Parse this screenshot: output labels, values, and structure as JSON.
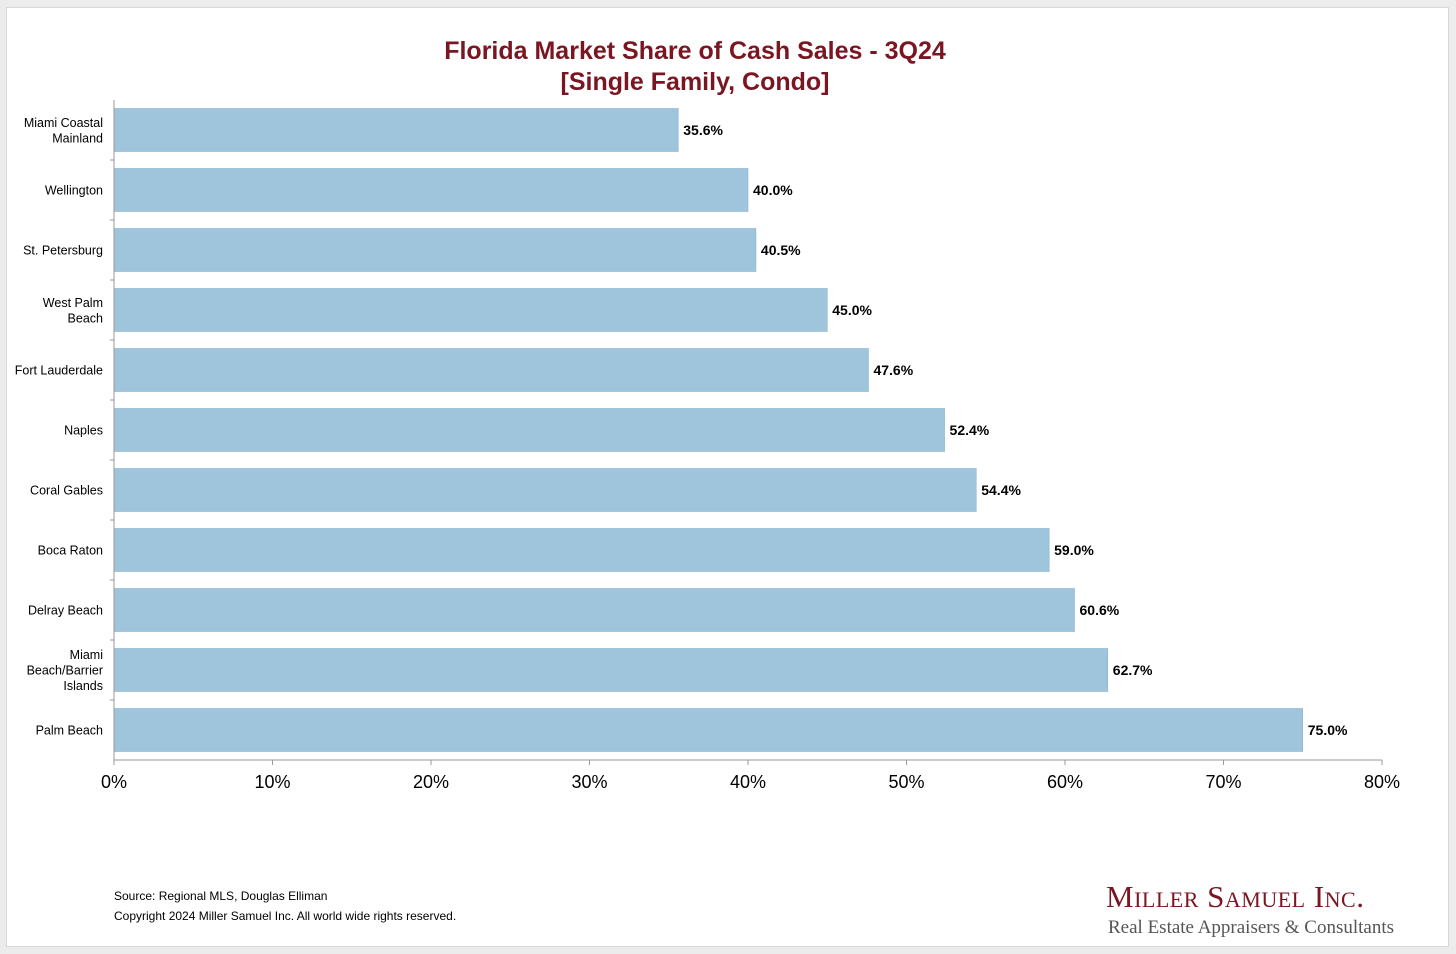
{
  "chart_data": {
    "type": "bar",
    "orientation": "horizontal",
    "title": [
      "Florida Market Share of Cash Sales - 3Q24",
      "[Single Family, Condo]"
    ],
    "categories": [
      [
        "Miami Coastal",
        "Mainland"
      ],
      [
        "Wellington"
      ],
      [
        "St. Petersburg"
      ],
      [
        "West Palm",
        "Beach"
      ],
      [
        "Fort Lauderdale"
      ],
      [
        "Naples"
      ],
      [
        "Coral Gables"
      ],
      [
        "Boca Raton"
      ],
      [
        "Delray Beach"
      ],
      [
        "Miami",
        "Beach/Barrier",
        "Islands"
      ],
      [
        "Palm Beach"
      ]
    ],
    "values": [
      35.6,
      40.0,
      40.5,
      45.0,
      47.6,
      52.4,
      54.4,
      59.0,
      60.6,
      62.7,
      75.0
    ],
    "data_labels": [
      "35.6%",
      "40.0%",
      "40.5%",
      "45.0%",
      "47.6%",
      "52.4%",
      "54.4%",
      "59.0%",
      "60.6%",
      "62.7%",
      "75.0%"
    ],
    "xlim": [
      0,
      80
    ],
    "xticks": [
      0,
      10,
      20,
      30,
      40,
      50,
      60,
      70,
      80
    ],
    "xtick_labels": [
      "0%",
      "10%",
      "20%",
      "30%",
      "40%",
      "50%",
      "60%",
      "70%",
      "80%"
    ],
    "xlabel": "",
    "ylabel": "",
    "grid": false,
    "legend": "none",
    "bar_color": "#9ec5dc",
    "title_color": "#7a1622"
  },
  "footer": {
    "source": "Source: Regional MLS, Douglas Elliman",
    "copyright": "Copyright 2024 Miller Samuel Inc.  All world wide rights reserved."
  },
  "brand": {
    "name": "Miller Samuel Inc.",
    "tagline": "Real Estate Appraisers & Consultants",
    "color": "#7a1622"
  }
}
